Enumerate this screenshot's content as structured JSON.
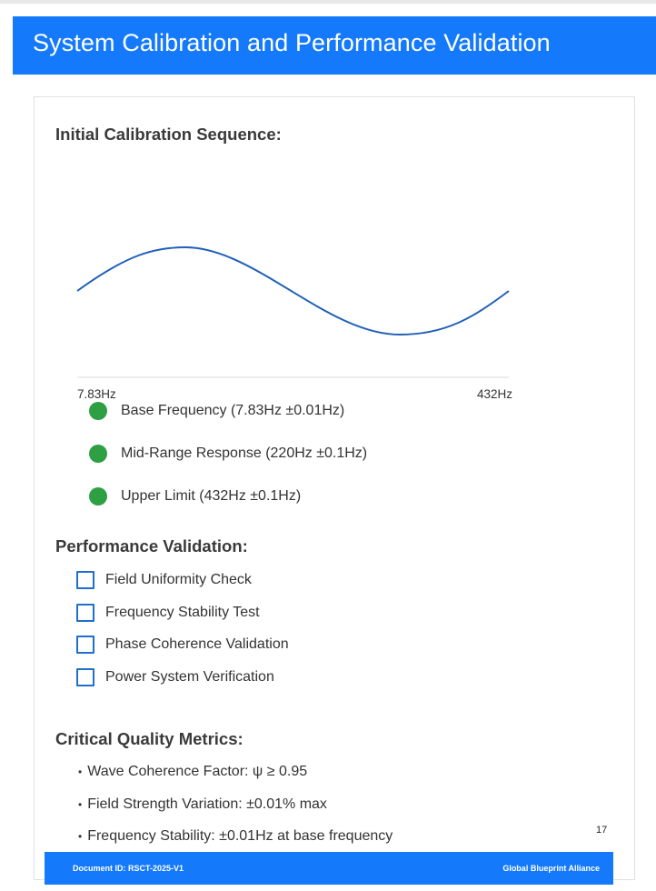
{
  "header": {
    "title": "System Calibration and Performance Validation"
  },
  "calibration": {
    "title": "Initial Calibration Sequence:",
    "axis": {
      "start_label": "7.83Hz",
      "end_label": "432Hz"
    },
    "colors": {
      "wave": "#2060b8",
      "status": "#2ea043"
    },
    "items": [
      {
        "label": "Base Frequency (7.83Hz ±0.01Hz)"
      },
      {
        "label": "Mid-Range Response (220Hz ±0.1Hz)"
      },
      {
        "label": "Upper Limit (432Hz ±0.1Hz)"
      }
    ]
  },
  "validation": {
    "title": "Performance Validation:",
    "items": [
      {
        "label": "Field Uniformity Check",
        "checked": false
      },
      {
        "label": "Frequency Stability Test",
        "checked": false
      },
      {
        "label": "Phase Coherence Validation",
        "checked": false
      },
      {
        "label": "Power System Verification",
        "checked": false
      }
    ]
  },
  "metrics": {
    "title": "Critical Quality Metrics:",
    "items": [
      {
        "label": "Wave Coherence Factor: ψ ≥ 0.95"
      },
      {
        "label": "Field Strength Variation: ±0.01% max"
      },
      {
        "label": "Frequency Stability: ±0.01Hz at base frequency"
      }
    ]
  },
  "page": {
    "number": "17"
  },
  "footer": {
    "left": "Document ID: RSCT-2025-V1",
    "right": "Global Blueprint Alliance"
  },
  "brand_color": "#1479fb"
}
